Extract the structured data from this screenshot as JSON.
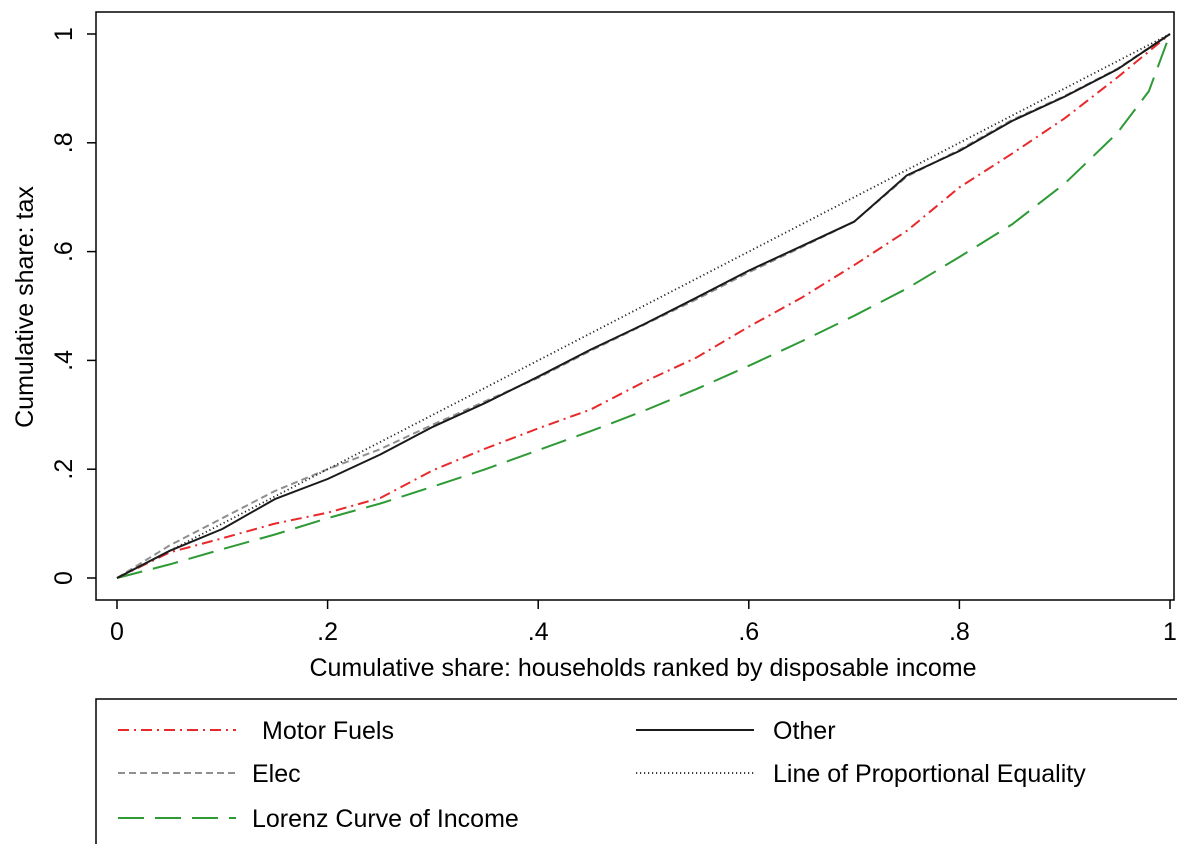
{
  "chart_data": {
    "type": "line",
    "title": "",
    "xlabel": "Cumulative share: households ranked by disposable income",
    "ylabel": "Cumulative share: tax",
    "xlim": [
      0,
      1
    ],
    "ylim": [
      0,
      1
    ],
    "x_ticks": [
      0,
      0.2,
      0.4,
      0.6,
      0.8,
      1
    ],
    "x_tick_labels": [
      "0",
      ".2",
      ".4",
      ".6",
      ".8",
      "1"
    ],
    "y_ticks": [
      0,
      0.2,
      0.4,
      0.6,
      0.8,
      1
    ],
    "y_tick_labels": [
      "0",
      ".2",
      ".4",
      ".6",
      ".8",
      "1"
    ],
    "grid": false,
    "legend_position": "bottom",
    "series": [
      {
        "name": "Motor Fuels",
        "color": "#e8292b",
        "style": "dash-dot",
        "x": [
          0,
          0.05,
          0.1,
          0.15,
          0.2,
          0.25,
          0.3,
          0.35,
          0.4,
          0.45,
          0.5,
          0.55,
          0.6,
          0.65,
          0.7,
          0.75,
          0.8,
          0.85,
          0.9,
          0.95,
          1
        ],
        "y": [
          0,
          0.047,
          0.073,
          0.1,
          0.12,
          0.147,
          0.198,
          0.238,
          0.275,
          0.31,
          0.36,
          0.405,
          0.462,
          0.515,
          0.575,
          0.638,
          0.718,
          0.78,
          0.845,
          0.92,
          1
        ]
      },
      {
        "name": "Other",
        "color": "#1a1a1a",
        "style": "solid",
        "x": [
          0,
          0.05,
          0.1,
          0.15,
          0.2,
          0.25,
          0.3,
          0.35,
          0.4,
          0.45,
          0.5,
          0.55,
          0.6,
          0.65,
          0.7,
          0.75,
          0.8,
          0.85,
          0.9,
          0.95,
          1
        ],
        "y": [
          0,
          0.05,
          0.09,
          0.145,
          0.182,
          0.227,
          0.278,
          0.322,
          0.37,
          0.42,
          0.466,
          0.515,
          0.565,
          0.61,
          0.655,
          0.74,
          0.785,
          0.84,
          0.885,
          0.935,
          1
        ]
      },
      {
        "name": "Elec",
        "color": "#8f8f8f",
        "style": "dashed",
        "x": [
          0,
          0.05,
          0.1,
          0.15,
          0.2,
          0.25,
          0.3,
          0.35,
          0.4,
          0.45,
          0.5,
          0.55,
          0.6,
          0.65,
          0.7,
          0.75,
          0.8,
          0.85,
          0.9,
          0.95,
          1
        ],
        "y": [
          0,
          0.06,
          0.11,
          0.16,
          0.2,
          0.237,
          0.282,
          0.325,
          0.368,
          0.418,
          0.465,
          0.512,
          0.562,
          0.608,
          0.655,
          0.738,
          0.787,
          0.842,
          0.886,
          0.936,
          1
        ]
      },
      {
        "name": "Line of Proportional Equality",
        "color": "#222222",
        "style": "dotted",
        "x": [
          0,
          1
        ],
        "y": [
          0,
          1
        ]
      },
      {
        "name": "Lorenz Curve of Income",
        "color": "#2e9a35",
        "style": "long-dash",
        "x": [
          0,
          0.05,
          0.1,
          0.15,
          0.2,
          0.25,
          0.3,
          0.35,
          0.4,
          0.45,
          0.5,
          0.55,
          0.6,
          0.65,
          0.7,
          0.75,
          0.8,
          0.85,
          0.9,
          0.95,
          0.98,
          1
        ],
        "y": [
          0,
          0.025,
          0.053,
          0.08,
          0.11,
          0.137,
          0.168,
          0.2,
          0.235,
          0.27,
          0.307,
          0.347,
          0.39,
          0.435,
          0.482,
          0.532,
          0.59,
          0.65,
          0.725,
          0.818,
          0.895,
          1
        ]
      }
    ],
    "legend": {
      "items": [
        {
          "label": "Motor Fuels",
          "series": 0
        },
        {
          "label": "Other",
          "series": 1
        },
        {
          "label": "Elec",
          "series": 2
        },
        {
          "label": "Line of Proportional Equality",
          "series": 3
        },
        {
          "label": "Lorenz Curve of Income",
          "series": 4
        }
      ]
    }
  }
}
